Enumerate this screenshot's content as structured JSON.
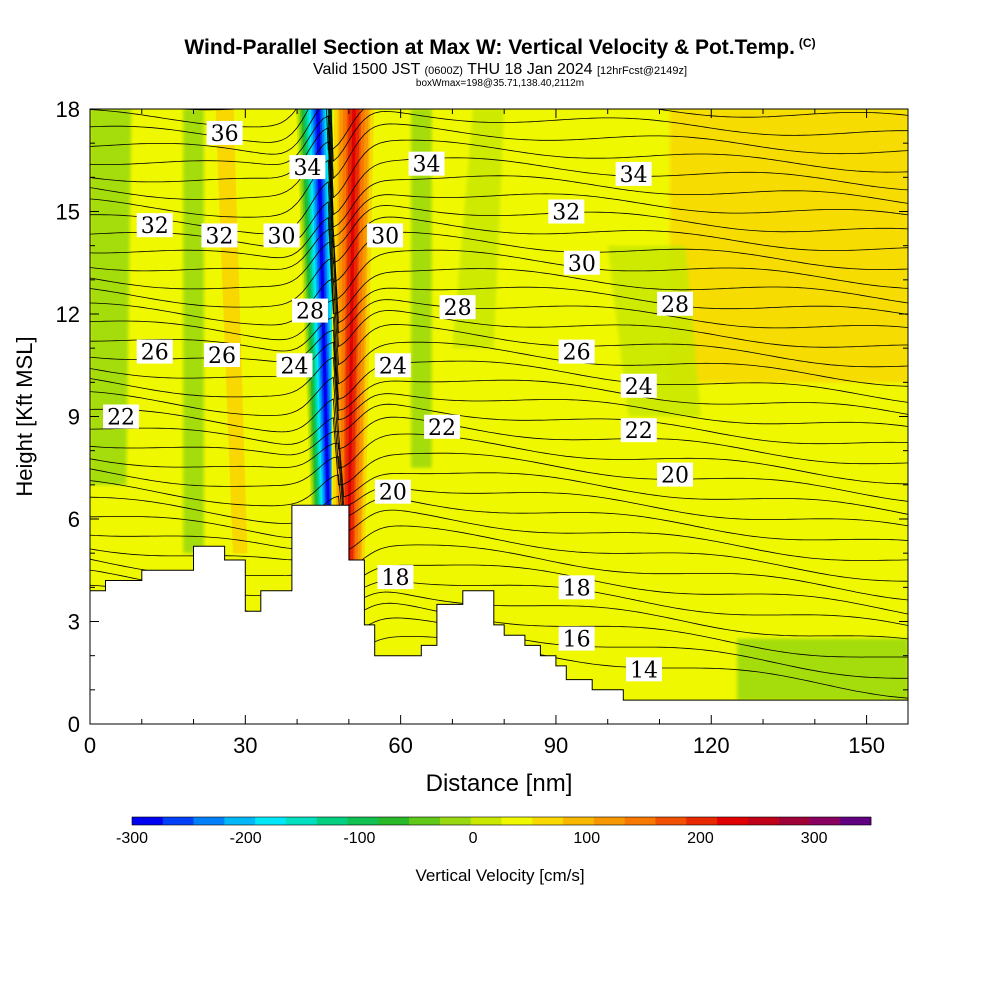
{
  "title": "Wind-Parallel Section at Max W: Vertical Velocity & Pot.Temp.",
  "title_units": "(C)",
  "subtitle": {
    "valid": "Valid 1500 JST",
    "utc": "(0600Z)",
    "date": "THU 18 Jan 2024",
    "forecast": "[12hrFcst@2149z]",
    "box": "boxWmax=198@35.71,138.40,2112m"
  },
  "chart_data": {
    "type": "heatmap",
    "xlabel": "Distance [nm]",
    "ylabel": "Height [Kft MSL]",
    "xlim": [
      0,
      158
    ],
    "ylim": [
      0,
      18
    ],
    "x_ticks": [
      0,
      30,
      60,
      90,
      120,
      150
    ],
    "y_ticks": [
      0,
      3,
      6,
      9,
      12,
      15,
      18
    ],
    "colorbar": {
      "label": "Vertical Velocity [cm/s]",
      "range": [
        -300,
        350
      ],
      "step": 25,
      "tick_values": [
        -300,
        -200,
        -100,
        0,
        100,
        200,
        300
      ],
      "tick_labels": [
        "-300",
        "-200",
        "-100",
        "0",
        "100",
        "200",
        "300"
      ],
      "colors": [
        "#0000f0",
        "#0040f8",
        "#0080f8",
        "#00b8f8",
        "#00e8f8",
        "#00e0c0",
        "#00d080",
        "#10c050",
        "#28b828",
        "#60c818",
        "#98d810",
        "#c8e800",
        "#f0f800",
        "#f8d800",
        "#f8b800",
        "#f89800",
        "#f87800",
        "#f05000",
        "#e82800",
        "#e00000",
        "#c00018",
        "#a00038",
        "#880060",
        "#600080"
      ]
    },
    "terrain_profile": {
      "x": [
        0,
        3,
        3,
        10,
        10,
        20,
        20,
        26,
        26,
        30,
        30,
        33,
        33,
        39,
        39,
        50,
        50,
        53,
        53,
        55,
        55,
        64,
        64,
        67,
        67,
        72,
        72,
        78,
        78,
        80,
        80,
        84,
        84,
        87,
        87,
        90,
        90,
        92,
        92,
        97,
        97,
        103,
        103,
        158
      ],
      "y": [
        3.9,
        3.9,
        4.2,
        4.2,
        4.5,
        4.5,
        5.2,
        5.2,
        4.8,
        4.8,
        3.3,
        3.3,
        3.9,
        3.9,
        6.4,
        6.4,
        4.8,
        4.8,
        2.9,
        2.9,
        2.0,
        2.0,
        2.3,
        2.3,
        3.5,
        3.5,
        3.9,
        3.9,
        2.9,
        2.9,
        2.6,
        2.6,
        2.3,
        2.3,
        2.0,
        2.0,
        1.7,
        1.7,
        1.3,
        1.3,
        1.0,
        1.0,
        0.7,
        0.7
      ]
    },
    "vertical_velocity_features": [
      {
        "kind": "downdraft",
        "x_top": 44,
        "x_bottom": 46,
        "y_top": 18,
        "y_bottom": 6.4,
        "min_value": -300
      },
      {
        "kind": "updraft",
        "x_top": 51,
        "x_bottom": 50,
        "y_top": 18,
        "y_bottom": 4.8,
        "max_value": 198
      },
      {
        "kind": "weak_lee_wave",
        "x_top": 26,
        "x_bottom": 29,
        "y_top": 18,
        "y_bottom": 5.0,
        "max_value": 50
      }
    ],
    "isentrope_labels": [
      {
        "value": "36",
        "x": 26,
        "y": 17.3
      },
      {
        "value": "34",
        "x": 42,
        "y": 16.3
      },
      {
        "value": "34",
        "x": 65,
        "y": 16.4
      },
      {
        "value": "34",
        "x": 105,
        "y": 16.1
      },
      {
        "value": "32",
        "x": 12.5,
        "y": 14.6
      },
      {
        "value": "32",
        "x": 25,
        "y": 14.3
      },
      {
        "value": "32",
        "x": 92,
        "y": 15.0
      },
      {
        "value": "30",
        "x": 37,
        "y": 14.3
      },
      {
        "value": "30",
        "x": 57,
        "y": 14.3
      },
      {
        "value": "30",
        "x": 95,
        "y": 13.5
      },
      {
        "value": "28",
        "x": 42.5,
        "y": 12.1
      },
      {
        "value": "28",
        "x": 71,
        "y": 12.2
      },
      {
        "value": "28",
        "x": 113,
        "y": 12.3
      },
      {
        "value": "26",
        "x": 12.5,
        "y": 10.9
      },
      {
        "value": "26",
        "x": 25.5,
        "y": 10.8
      },
      {
        "value": "26",
        "x": 94,
        "y": 10.9
      },
      {
        "value": "24",
        "x": 39.5,
        "y": 10.5
      },
      {
        "value": "24",
        "x": 58.5,
        "y": 10.5
      },
      {
        "value": "24",
        "x": 106,
        "y": 9.9
      },
      {
        "value": "22",
        "x": 6,
        "y": 9.0
      },
      {
        "value": "22",
        "x": 68,
        "y": 8.7
      },
      {
        "value": "22",
        "x": 106,
        "y": 8.6
      },
      {
        "value": "20",
        "x": 58.5,
        "y": 6.8
      },
      {
        "value": "20",
        "x": 113,
        "y": 7.3
      },
      {
        "value": "18",
        "x": 59,
        "y": 4.3
      },
      {
        "value": "18",
        "x": 94,
        "y": 4.0
      },
      {
        "value": "16",
        "x": 94,
        "y": 2.5
      },
      {
        "value": "14",
        "x": 107,
        "y": 1.6
      }
    ]
  }
}
